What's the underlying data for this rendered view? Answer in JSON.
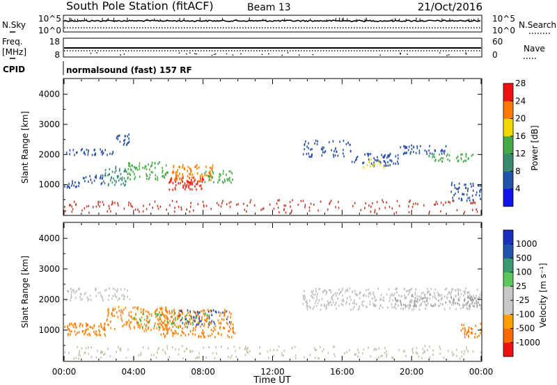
{
  "header": {
    "station": "South Pole Station (fitACF)",
    "beam": "Beam 13",
    "date": "21/Oct/2016"
  },
  "aux_panels": {
    "left_labels": {
      "nsky": "N.Sky",
      "freq_top": "Freq.",
      "freq_unit": "[MHz]",
      "cpid": "CPID"
    },
    "right_labels": {
      "nsearch": "N.Search",
      "nave": "Nave"
    },
    "noise_axis": {
      "left_ticks": [
        "10^5",
        "10^0"
      ],
      "right_ticks": [
        "10^5",
        "10^0"
      ]
    },
    "freq_axis": {
      "left_ticks": [
        "18",
        "8"
      ],
      "right_ticks": [
        "60",
        "0"
      ]
    },
    "cpid_text": "normalsound (fast) 157 RF"
  },
  "chart_data": [
    {
      "type": "heatmap",
      "name": "power-panel",
      "parameter": "Power",
      "ylabel": "Slant Range [km]",
      "yticks": [
        1000,
        2000,
        3000,
        4000
      ],
      "ylim": [
        0,
        4500
      ],
      "colorbar_label": "Power [dB]",
      "colorbar_ticks": [
        "4",
        "8",
        "12",
        "16",
        "20",
        "24",
        "28"
      ],
      "colorbar_colors": [
        "#1111ee",
        "#2255aa",
        "#3a8a72",
        "#46aa46",
        "#f0d800",
        "#ff7a00",
        "#ee1010"
      ],
      "clusters": [
        {
          "t0": 0.1,
          "t1": 2.9,
          "r0": 2020,
          "r1": 2220,
          "color": "#2a4fa8",
          "density": 0.6
        },
        {
          "t0": 2.9,
          "t1": 3.8,
          "r0": 2350,
          "r1": 2700,
          "color": "#2a4fa8",
          "density": 0.6
        },
        {
          "t0": 0.0,
          "t1": 0.9,
          "r0": 900,
          "r1": 1150,
          "color": "#2a4fa8",
          "density": 0.7
        },
        {
          "t0": 0.9,
          "t1": 2.2,
          "r0": 1050,
          "r1": 1350,
          "color": "#2a4fa8",
          "density": 0.55
        },
        {
          "t0": 2.2,
          "t1": 3.6,
          "r0": 1000,
          "r1": 1650,
          "color": "#3a8a72",
          "density": 0.55
        },
        {
          "t0": 3.6,
          "t1": 6.0,
          "r0": 1200,
          "r1": 1800,
          "color": "#46aa46",
          "density": 0.5
        },
        {
          "t0": 6.0,
          "t1": 8.0,
          "r0": 850,
          "r1": 1300,
          "color": "#ee2010",
          "density": 0.75
        },
        {
          "t0": 6.2,
          "t1": 8.6,
          "r0": 1150,
          "r1": 1700,
          "color": "#ff7a00",
          "density": 0.6
        },
        {
          "t0": 8.0,
          "t1": 9.8,
          "r0": 1100,
          "r1": 1500,
          "color": "#46aa46",
          "density": 0.5
        },
        {
          "t0": 13.7,
          "t1": 16.5,
          "r0": 1950,
          "r1": 2500,
          "color": "#2a4fa8",
          "density": 0.35
        },
        {
          "t0": 16.5,
          "t1": 19.2,
          "r0": 1650,
          "r1": 2100,
          "color": "#2a4fa8",
          "density": 0.5
        },
        {
          "t0": 17.2,
          "t1": 18.4,
          "r0": 1600,
          "r1": 1900,
          "color": "#f0d800",
          "density": 0.3
        },
        {
          "t0": 19.2,
          "t1": 22.0,
          "r0": 2050,
          "r1": 2350,
          "color": "#2a4fa8",
          "density": 0.55
        },
        {
          "t0": 20.8,
          "t1": 23.6,
          "r0": 1800,
          "r1": 2050,
          "color": "#46aa46",
          "density": 0.55
        },
        {
          "t0": 22.2,
          "t1": 24.0,
          "r0": 500,
          "r1": 1100,
          "color": "#2a4fa8",
          "density": 0.5
        },
        {
          "t0": 0.0,
          "t1": 24.0,
          "r0": 100,
          "r1": 520,
          "color": "#c24030",
          "density": 0.18
        }
      ]
    },
    {
      "type": "heatmap",
      "name": "velocity-panel",
      "parameter": "Velocity",
      "xlabel": "Time UT",
      "xticks": [
        "00:00",
        "04:00",
        "08:00",
        "12:00",
        "16:00",
        "20:00",
        "00:00"
      ],
      "xlim_hours": [
        0,
        24
      ],
      "ylabel": "Slant Range [km]",
      "yticks": [
        1000,
        2000,
        3000,
        4000
      ],
      "ylim": [
        0,
        4500
      ],
      "colorbar_label": "Velocity [m s⁻¹]",
      "colorbar_ticks": [
        "-1000",
        "-500",
        "-100",
        "-25",
        "25",
        "100",
        "500",
        "1000"
      ],
      "colorbar_colors": [
        "#ee1010",
        "#ff6a00",
        "#ffa000",
        "#c8c8c8",
        "#c8c8c8",
        "#5ac85a",
        "#3a9a70",
        "#2255aa",
        "#1a2ec0"
      ],
      "clusters": [
        {
          "t0": 0.1,
          "t1": 3.8,
          "r0": 2000,
          "r1": 2400,
          "color": "#c0c0c0",
          "density": 0.45
        },
        {
          "t0": 0.0,
          "t1": 2.4,
          "r0": 850,
          "r1": 1250,
          "color": "#ff7a00",
          "density": 0.75
        },
        {
          "t0": 2.4,
          "t1": 6.0,
          "r0": 1000,
          "r1": 1800,
          "color": "#ff8a10",
          "density": 0.6
        },
        {
          "t0": 5.5,
          "t1": 9.8,
          "r0": 800,
          "r1": 1700,
          "color": "#ff7a00",
          "density": 0.55
        },
        {
          "t0": 6.5,
          "t1": 9.5,
          "r0": 1200,
          "r1": 1700,
          "color": "#2a4fa8",
          "density": 0.3
        },
        {
          "t0": 4.0,
          "t1": 8.5,
          "r0": 1100,
          "r1": 1600,
          "color": "#4ab04a",
          "density": 0.2
        },
        {
          "t0": 13.7,
          "t1": 24.0,
          "r0": 1700,
          "r1": 2400,
          "color": "#c0c0c0",
          "density": 0.5
        },
        {
          "t0": 19.0,
          "t1": 24.0,
          "r0": 1800,
          "r1": 2200,
          "color": "#a0a0a0",
          "density": 0.4
        },
        {
          "t0": 22.8,
          "t1": 24.0,
          "r0": 800,
          "r1": 1250,
          "color": "#ff7a00",
          "density": 0.6
        },
        {
          "t0": 0.0,
          "t1": 24.0,
          "r0": 100,
          "r1": 520,
          "color": "#c8c0a8",
          "density": 0.2
        }
      ]
    }
  ]
}
